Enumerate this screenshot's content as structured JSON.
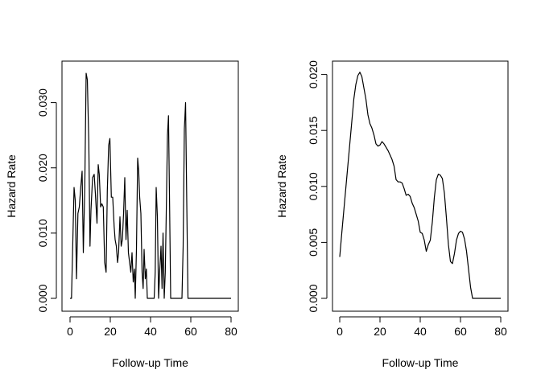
{
  "chart_data": [
    {
      "type": "line",
      "title": "",
      "xlabel": "Follow-up Time",
      "ylabel": "Hazard Rate",
      "xlim": [
        0,
        80
      ],
      "ylim": [
        0,
        0.035
      ],
      "grid": false,
      "xticks": [
        {
          "value": 0,
          "label": "0"
        },
        {
          "value": 20,
          "label": "20"
        },
        {
          "value": 40,
          "label": "40"
        },
        {
          "value": 60,
          "label": "60"
        },
        {
          "value": 80,
          "label": "80"
        }
      ],
      "yticks": [
        {
          "value": 0,
          "label": "0.000"
        },
        {
          "value": 0.01,
          "label": "0.010"
        },
        {
          "value": 0.02,
          "label": "0.020"
        },
        {
          "value": 0.03,
          "label": "0.030"
        }
      ],
      "series": [
        {
          "x": [
            0,
            0.7,
            1.4,
            2.0,
            2.6,
            3.2,
            3.9,
            4.6,
            5.3,
            6.0,
            6.6,
            7.3,
            8.0,
            8.6,
            9.3,
            9.9,
            10.4,
            11.2,
            12.0,
            12.6,
            13.4,
            14.0,
            14.5,
            15.2,
            15.8,
            16.5,
            17.2,
            17.9,
            18.5,
            19.2,
            19.8,
            20.5,
            21.2,
            21.9,
            22.4,
            23.0,
            23.6,
            24.1,
            24.8,
            25.4,
            26.0,
            26.6,
            27.2,
            27.8,
            28.4,
            29.0,
            29.6,
            30.2,
            30.8,
            31.4,
            32.0,
            32.4,
            33.0,
            33.6,
            34.1,
            34.6,
            35.2,
            35.8,
            36.3,
            36.8,
            37.4,
            37.9,
            38.4,
            39.0,
            39.5,
            40.0,
            40.6,
            41.2,
            41.8,
            42.3,
            42.8,
            43.4,
            44.0,
            44.6,
            45.2,
            45.7,
            46.2,
            46.8,
            47.3,
            47.8,
            48.4,
            48.9,
            49.4,
            50.0,
            50.5,
            51.0,
            51.5,
            52.0,
            52.6,
            53.2,
            53.8,
            54.4,
            55.0,
            55.6,
            56.2,
            56.8,
            57.4,
            58.0,
            58.6,
            59.2,
            59.8,
            60.3,
            60.8,
            61.4,
            62.0,
            63.0,
            64.0,
            66.0,
            70.0,
            75.0,
            80.0
          ],
          "y": [
            0,
            0,
            0.009,
            0.017,
            0.015,
            0.003,
            0.013,
            0.014,
            0.017,
            0.0195,
            0.007,
            0.017,
            0.0345,
            0.0335,
            0.024,
            0.008,
            0.0135,
            0.0185,
            0.019,
            0.016,
            0.0115,
            0.0205,
            0.019,
            0.014,
            0.0145,
            0.014,
            0.0055,
            0.004,
            0.0165,
            0.0235,
            0.0245,
            0.0155,
            0.0155,
            0.011,
            0.009,
            0.008,
            0.0055,
            0.007,
            0.0125,
            0.008,
            0.009,
            0.013,
            0.0185,
            0.009,
            0.0135,
            0.007,
            0.0055,
            0.004,
            0.007,
            0.0025,
            0.0045,
            0.0,
            0.0075,
            0.0215,
            0.0195,
            0.0155,
            0.013,
            0.004,
            0.0015,
            0.0075,
            0.003,
            0.0045,
            0.0,
            0.0,
            0.0,
            0.0,
            0.0,
            0.0,
            0.0,
            0.004,
            0.017,
            0.0125,
            0.0,
            0.0045,
            0.008,
            0.0015,
            0.01,
            0.0,
            0.004,
            0.013,
            0.025,
            0.028,
            0.016,
            0.0,
            0.0,
            0.0,
            0.0,
            0.0,
            0.0,
            0.0,
            0.0,
            0.0,
            0.0,
            0.0,
            0.008,
            0.026,
            0.03,
            0.0145,
            0.0,
            0.0,
            0.0,
            0.0,
            0.0,
            0.0,
            0.0,
            0.0,
            0.0,
            0.0,
            0.0,
            0.0,
            0.0
          ]
        }
      ]
    },
    {
      "type": "line",
      "title": "",
      "xlabel": "Follow-up Time",
      "ylabel": "Hazard Rate",
      "xlim": [
        0,
        80
      ],
      "ylim": [
        0,
        0.0205
      ],
      "grid": false,
      "xticks": [
        {
          "value": 0,
          "label": "0"
        },
        {
          "value": 20,
          "label": "20"
        },
        {
          "value": 40,
          "label": "40"
        },
        {
          "value": 60,
          "label": "60"
        },
        {
          "value": 80,
          "label": "80"
        }
      ],
      "yticks": [
        {
          "value": 0,
          "label": "0.000"
        },
        {
          "value": 0.005,
          "label": "0.005"
        },
        {
          "value": 0.01,
          "label": "0.010"
        },
        {
          "value": 0.015,
          "label": "0.015"
        },
        {
          "value": 0.02,
          "label": "0.020"
        }
      ],
      "series": [
        {
          "x": [
            0,
            1,
            2,
            3,
            4,
            5,
            6,
            7,
            8,
            9,
            10,
            11,
            12,
            13,
            14,
            15,
            16,
            17,
            18,
            19,
            20,
            21,
            22,
            23,
            24,
            25,
            26,
            27,
            28,
            29,
            30,
            31,
            32,
            33,
            34,
            35,
            36,
            37,
            38,
            39,
            40,
            41,
            42,
            43,
            44,
            45,
            46,
            47,
            48,
            49,
            50,
            51,
            52,
            53,
            54,
            55,
            56,
            57,
            58,
            59,
            60,
            61,
            62,
            63,
            64,
            65,
            66,
            70,
            75,
            80
          ],
          "y": [
            0.0037,
            0.0058,
            0.0078,
            0.0098,
            0.0118,
            0.0138,
            0.0158,
            0.0178,
            0.0191,
            0.0199,
            0.0202,
            0.0198,
            0.0188,
            0.0178,
            0.0164,
            0.0156,
            0.0152,
            0.0146,
            0.0138,
            0.0136,
            0.0137,
            0.014,
            0.0138,
            0.0135,
            0.0132,
            0.0128,
            0.0124,
            0.0118,
            0.0106,
            0.0104,
            0.0104,
            0.0103,
            0.0098,
            0.0092,
            0.0093,
            0.0091,
            0.0085,
            0.0081,
            0.0075,
            0.0069,
            0.0059,
            0.0058,
            0.0052,
            0.0042,
            0.0048,
            0.0052,
            0.0068,
            0.009,
            0.0106,
            0.0111,
            0.011,
            0.0107,
            0.0094,
            0.0072,
            0.0048,
            0.0033,
            0.0031,
            0.004,
            0.0052,
            0.0058,
            0.006,
            0.0059,
            0.0053,
            0.0042,
            0.0026,
            0.001,
            0.0,
            0.0,
            0.0,
            0.0
          ]
        }
      ]
    }
  ]
}
